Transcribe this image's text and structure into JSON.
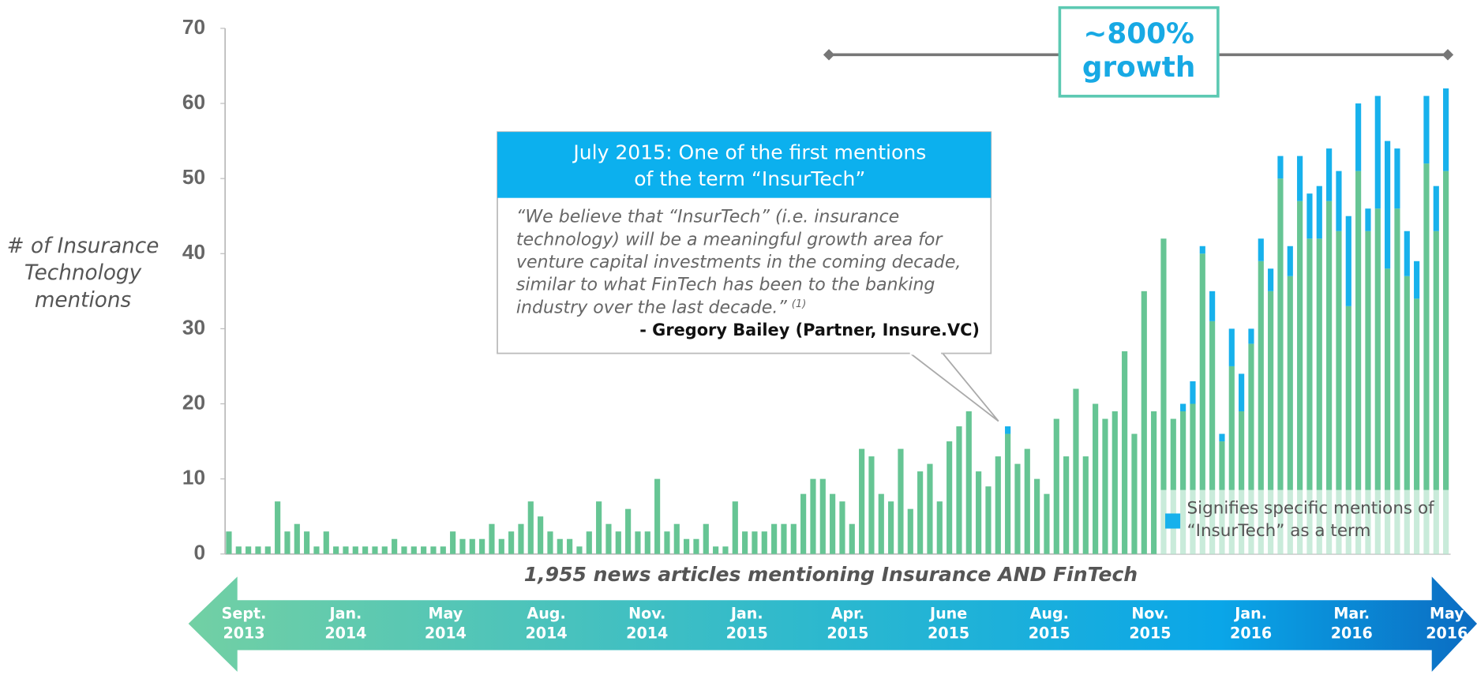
{
  "chart_data": {
    "type": "stacked_bar",
    "y_label_lines": [
      "# of Insurance",
      "Technology",
      "mentions"
    ],
    "x_label": "1,955 news articles mentioning Insurance AND FinTech",
    "ylim": [
      0,
      70
    ],
    "yticks": [
      0,
      10,
      20,
      30,
      40,
      50,
      60,
      70
    ],
    "series": [
      {
        "name": null,
        "color": "#66c594",
        "values": [
          3,
          1,
          1,
          1,
          1,
          7,
          3,
          4,
          3,
          1,
          3,
          1,
          1,
          1,
          1,
          1,
          1,
          2,
          1,
          1,
          1,
          1,
          1,
          3,
          2,
          2,
          2,
          4,
          2,
          3,
          4,
          7,
          5,
          3,
          2,
          2,
          1,
          3,
          7,
          4,
          3,
          6,
          3,
          3,
          10,
          3,
          4,
          2,
          2,
          4,
          1,
          1,
          7,
          3,
          3,
          3,
          4,
          4,
          4,
          8,
          10,
          10,
          8,
          7,
          4,
          14,
          13,
          8,
          7,
          14,
          6,
          11,
          12,
          7,
          15,
          17,
          19,
          11,
          9,
          13,
          16,
          12,
          14,
          10,
          8,
          18,
          13,
          22,
          13,
          20,
          18,
          19,
          27,
          16,
          35,
          19,
          42,
          18,
          19,
          20,
          40,
          31,
          15,
          25,
          19,
          28,
          39,
          35,
          50,
          37,
          47,
          42,
          42,
          47,
          43,
          33,
          51,
          43,
          46,
          38,
          46,
          37,
          34,
          52,
          43,
          51
        ]
      },
      {
        "name": "Signifies specific mentions of “InsurTech” as a term",
        "color": "#17b1ec",
        "values": [
          0,
          0,
          0,
          0,
          0,
          0,
          0,
          0,
          0,
          0,
          0,
          0,
          0,
          0,
          0,
          0,
          0,
          0,
          0,
          0,
          0,
          0,
          0,
          0,
          0,
          0,
          0,
          0,
          0,
          0,
          0,
          0,
          0,
          0,
          0,
          0,
          0,
          0,
          0,
          0,
          0,
          0,
          0,
          0,
          0,
          0,
          0,
          0,
          0,
          0,
          0,
          0,
          0,
          0,
          0,
          0,
          0,
          0,
          0,
          0,
          0,
          0,
          0,
          0,
          0,
          0,
          0,
          0,
          0,
          0,
          0,
          0,
          0,
          0,
          0,
          0,
          0,
          0,
          0,
          0,
          1,
          0,
          0,
          0,
          0,
          0,
          0,
          0,
          0,
          0,
          0,
          0,
          0,
          0,
          0,
          0,
          0,
          0,
          1,
          3,
          1,
          4,
          1,
          5,
          5,
          2,
          3,
          3,
          3,
          4,
          6,
          6,
          7,
          7,
          8,
          12,
          9,
          3,
          15,
          17,
          8,
          6,
          5,
          9,
          6,
          11
        ]
      }
    ],
    "timeline": [
      {
        "month": "Sept.",
        "year": "2013"
      },
      {
        "month": "Jan.",
        "year": "2014"
      },
      {
        "month": "May",
        "year": "2014"
      },
      {
        "month": "Aug.",
        "year": "2014"
      },
      {
        "month": "Nov.",
        "year": "2014"
      },
      {
        "month": "Jan.",
        "year": "2015"
      },
      {
        "month": "Apr.",
        "year": "2015"
      },
      {
        "month": "June",
        "year": "2015"
      },
      {
        "month": "Aug.",
        "year": "2015"
      },
      {
        "month": "Nov.",
        "year": "2015"
      },
      {
        "month": "Jan.",
        "year": "2016"
      },
      {
        "month": "Mar.",
        "year": "2016"
      },
      {
        "month": "May",
        "year": "2016"
      }
    ],
    "growth_annotation": [
      "~800%",
      "growth"
    ],
    "callout": {
      "title_lines": [
        "July 2015: One of the first mentions",
        "of the term “InsurTech”"
      ],
      "quote_lines": [
        "“We believe that “InsurTech” (i.e. insurance",
        "technology) will be a meaningful growth area for",
        "venture capital investments in the coming decade,",
        "similar to what FinTech has been to the banking",
        "industry over the last decade.”"
      ],
      "footnote": "(1)",
      "attribution": "- Gregory Bailey (Partner, Insure.VC)"
    }
  }
}
